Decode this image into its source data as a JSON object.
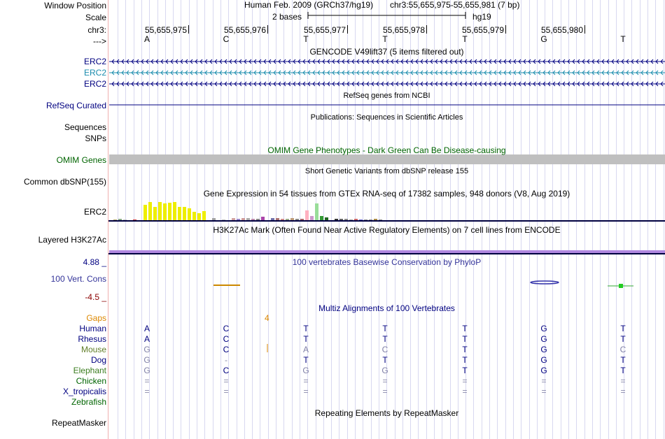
{
  "header": {
    "window_position_label": "Window Position",
    "scale_label": "Scale",
    "chrom_label": "chr3:",
    "strand_label": "--->",
    "assembly": "Human Feb. 2009 (GRCh37/hg19)",
    "position": "chr3:55,655,975-55,655,981 (7 bp)",
    "scale_text": "2 bases",
    "db": "hg19"
  },
  "ruler": [
    "55,655,975",
    "55,655,976",
    "55,655,977",
    "55,655,978",
    "55,655,979",
    "55,655,980"
  ],
  "sequence": [
    "A",
    "C",
    "T",
    "T",
    "T",
    "G",
    "T"
  ],
  "gencode": {
    "title": "GENCODE V49lift37 (5 items filtered out)",
    "items": [
      "ERC2",
      "ERC2",
      "ERC2"
    ]
  },
  "refseq": {
    "title": "RefSeq genes from NCBI",
    "label": "RefSeq Curated"
  },
  "publications": {
    "title": "Publications: Sequences in Scientific Articles",
    "labels": [
      "Sequences",
      "SNPs"
    ]
  },
  "omim": {
    "title": "OMIM Gene Phenotypes - Dark Green Can Be Disease-causing",
    "label": "OMIM Genes"
  },
  "dbsnp": {
    "title": "Short Genetic Variants from dbSNP release 155",
    "label": "Common dbSNP(155)"
  },
  "gtex": {
    "title": "Gene Expression in 54 tissues from GTEx RNA-seq of 17382 samples, 948 donors (V8, Aug 2019)",
    "label": "ERC2"
  },
  "h3k27ac": {
    "title": "H3K27Ac Mark (Often Found Near Active Regulatory Elements) on 7 cell lines from ENCODE",
    "label": "Layered H3K27Ac"
  },
  "phylop": {
    "title": "100 vertebrates Basewise Conservation by PhyloP",
    "label": "100 Vert. Cons",
    "max": "4.88 _",
    "min": "-4.5 _"
  },
  "multiz": {
    "title": "Multiz Alignments of 100 Vertebrates",
    "gaps_label": "Gaps",
    "gaps_value": "4",
    "species": [
      {
        "name": "Human",
        "bases": [
          "A",
          "C",
          "T",
          "T",
          "T",
          "G",
          "T"
        ]
      },
      {
        "name": "Rhesus",
        "bases": [
          "A",
          "C",
          "T",
          "T",
          "T",
          "G",
          "T"
        ]
      },
      {
        "name": "Mouse",
        "bases": [
          "G",
          "C",
          "A",
          "C",
          "T",
          "G",
          "C"
        ]
      },
      {
        "name": "Dog",
        "bases": [
          "G",
          "-",
          "T",
          "T",
          "T",
          "G",
          "T"
        ]
      },
      {
        "name": "Elephant",
        "bases": [
          "G",
          "C",
          "G",
          "G",
          "T",
          "G",
          "T"
        ]
      },
      {
        "name": "Chicken",
        "bases": [
          "=",
          "=",
          "=",
          "=",
          "=",
          "=",
          "="
        ]
      },
      {
        "name": "X_tropicalis",
        "bases": [
          "=",
          "=",
          "=",
          "=",
          "=",
          "=",
          "="
        ]
      },
      {
        "name": "Zebrafish",
        "bases": [
          "",
          "",
          "",
          "",
          "",
          "",
          ""
        ]
      }
    ]
  },
  "repeatmasker": {
    "title": "Repeating Elements by RepeatMasker",
    "label": "RepeatMasker"
  },
  "colors": {
    "navy": "#000080",
    "gencode_teal": "#1a8cad",
    "omim_green": "#006400",
    "gaps_orange": "#dd8800",
    "phylop_max": "#000080",
    "phylop_min": "#8b0000",
    "mouse_label": "#607d28",
    "elephant_label": "#3b7d1f",
    "chicken_label": "#006400",
    "zebrafish_label": "#006400"
  }
}
